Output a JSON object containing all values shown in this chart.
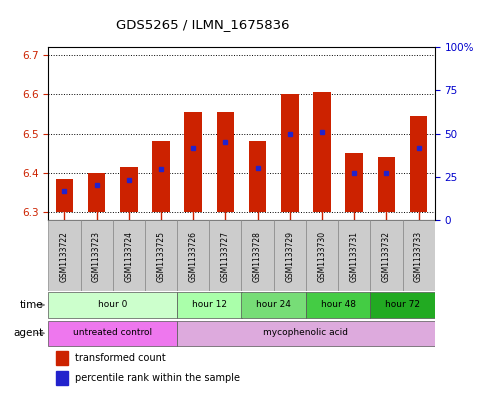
{
  "title": "GDS5265 / ILMN_1675836",
  "samples": [
    "GSM1133722",
    "GSM1133723",
    "GSM1133724",
    "GSM1133725",
    "GSM1133726",
    "GSM1133727",
    "GSM1133728",
    "GSM1133729",
    "GSM1133730",
    "GSM1133731",
    "GSM1133732",
    "GSM1133733"
  ],
  "bar_bottoms": [
    6.3,
    6.3,
    6.3,
    6.3,
    6.3,
    6.3,
    6.3,
    6.3,
    6.3,
    6.3,
    6.3,
    6.3
  ],
  "bar_tops": [
    6.385,
    6.4,
    6.415,
    6.48,
    6.555,
    6.555,
    6.48,
    6.6,
    6.605,
    6.45,
    6.44,
    6.545
  ],
  "blue_positions": [
    6.355,
    6.37,
    6.383,
    6.41,
    6.463,
    6.478,
    6.413,
    6.5,
    6.503,
    6.4,
    6.4,
    6.463
  ],
  "ylim_left": [
    6.28,
    6.72
  ],
  "ylim_right": [
    0,
    100
  ],
  "yticks_left": [
    6.3,
    6.4,
    6.5,
    6.6,
    6.7
  ],
  "yticks_right": [
    0,
    25,
    50,
    75,
    100
  ],
  "ytick_right_labels": [
    "0",
    "25",
    "50",
    "75",
    "100%"
  ],
  "bar_color": "#cc2200",
  "blue_color": "#2222cc",
  "time_groups": [
    {
      "label": "hour 0",
      "start": 0,
      "end": 4,
      "color": "#ccffcc"
    },
    {
      "label": "hour 12",
      "start": 4,
      "end": 6,
      "color": "#aaffaa"
    },
    {
      "label": "hour 24",
      "start": 6,
      "end": 8,
      "color": "#77dd77"
    },
    {
      "label": "hour 48",
      "start": 8,
      "end": 10,
      "color": "#44cc44"
    },
    {
      "label": "hour 72",
      "start": 10,
      "end": 12,
      "color": "#22aa22"
    }
  ],
  "agent_groups": [
    {
      "label": "untreated control",
      "start": 0,
      "end": 4,
      "color": "#ee77ee"
    },
    {
      "label": "mycophenolic acid",
      "start": 4,
      "end": 12,
      "color": "#ddaadd"
    }
  ],
  "bar_width": 0.55,
  "figsize": [
    4.83,
    3.93
  ],
  "dpi": 100,
  "tick_color_left": "#cc2200",
  "tick_color_right": "#0000cc"
}
